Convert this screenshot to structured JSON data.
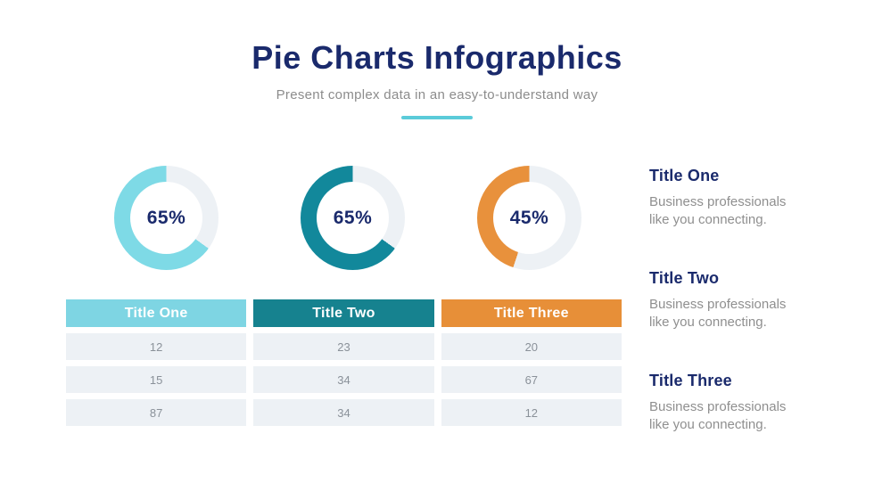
{
  "header": {
    "title": "Pie Charts Infographics",
    "subtitle": "Present complex data in an easy-to-understand way"
  },
  "colors": {
    "navy": "#1a2a6c",
    "subtitle_gray": "#8c8c8c",
    "underline": "#5bcbd9",
    "donut_track": "#edf1f5",
    "donut_cyan": "#7edae6",
    "donut_teal": "#12889b",
    "donut_orange": "#e8913c",
    "header_cyan": "#7ed5e3",
    "header_teal": "#16828f",
    "header_orange": "#e78f38",
    "cell_bg": "#edf1f5",
    "cell_text": "#8a9199"
  },
  "donuts": [
    {
      "name": "Title One",
      "percent": 65,
      "label": "65%",
      "color": "#7edae6"
    },
    {
      "name": "Title Two",
      "percent": 65,
      "label": "65%",
      "color": "#12889b"
    },
    {
      "name": "Title Three",
      "percent": 45,
      "label": "45%",
      "color": "#e8913c"
    }
  ],
  "table": {
    "columns": [
      {
        "label": "Title One",
        "color": "#7ed5e3"
      },
      {
        "label": "Title Two",
        "color": "#16828f"
      },
      {
        "label": "Title Three",
        "color": "#e78f38"
      }
    ],
    "rows": [
      [
        "12",
        "23",
        "20"
      ],
      [
        "15",
        "34",
        "67"
      ],
      [
        "87",
        "34",
        "12"
      ]
    ]
  },
  "legend": [
    {
      "title": "Title One",
      "body": "Business professionals like you connecting."
    },
    {
      "title": "Title Two",
      "body": "Business professionals like you connecting."
    },
    {
      "title": "Title Three",
      "body": "Business professionals like you connecting."
    }
  ],
  "chart_data": [
    {
      "type": "pie",
      "title": "Title One",
      "labels": [
        "filled",
        "remainder"
      ],
      "values": [
        65,
        35
      ],
      "center_label": "65%",
      "style": "donut",
      "fill_color": "#7edae6",
      "track_color": "#edf1f5",
      "fill_direction": "counterclockwise-from-top"
    },
    {
      "type": "pie",
      "title": "Title Two",
      "labels": [
        "filled",
        "remainder"
      ],
      "values": [
        65,
        35
      ],
      "center_label": "65%",
      "style": "donut",
      "fill_color": "#12889b",
      "track_color": "#edf1f5",
      "fill_direction": "counterclockwise-from-top"
    },
    {
      "type": "pie",
      "title": "Title Three",
      "labels": [
        "filled",
        "remainder"
      ],
      "values": [
        45,
        55
      ],
      "center_label": "45%",
      "style": "donut",
      "fill_color": "#e8913c",
      "track_color": "#edf1f5",
      "fill_direction": "counterclockwise-from-top"
    },
    {
      "type": "table",
      "columns": [
        "Title One",
        "Title Two",
        "Title Three"
      ],
      "rows": [
        [
          12,
          23,
          20
        ],
        [
          15,
          34,
          67
        ],
        [
          87,
          34,
          12
        ]
      ]
    }
  ]
}
